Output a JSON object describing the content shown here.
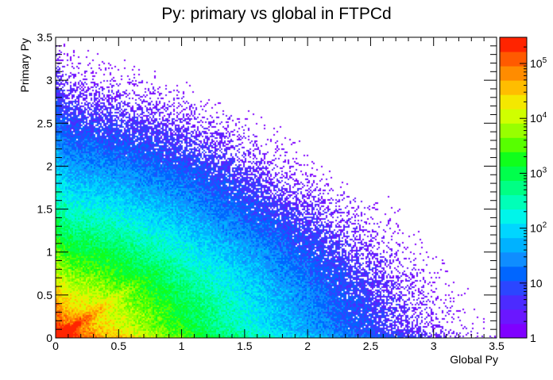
{
  "chart_data": {
    "type": "heatmap",
    "title": "Py: primary vs global in FTPCd",
    "xlabel": "Global Py",
    "ylabel": "Primary Py",
    "xlim": [
      0,
      3.5
    ],
    "ylim": [
      0,
      3.5
    ],
    "xticks": [
      "0",
      "0.5",
      "1",
      "1.5",
      "2",
      "2.5",
      "3",
      "3.5"
    ],
    "yticks": [
      "0",
      "0.5",
      "1",
      "1.5",
      "2",
      "2.5",
      "3",
      "3.5"
    ],
    "xtick_values": [
      0,
      0.5,
      1,
      1.5,
      2,
      2.5,
      3,
      3.5
    ],
    "ytick_values": [
      0,
      0.5,
      1,
      1.5,
      2,
      2.5,
      3,
      3.5
    ],
    "colorbar": {
      "scale": "log",
      "range": [
        1,
        300000
      ],
      "labels": [
        {
          "base": "1",
          "exp": ""
        },
        {
          "base": "10",
          "exp": ""
        },
        {
          "base": "10",
          "exp": "2"
        },
        {
          "base": "10",
          "exp": "3"
        },
        {
          "base": "10",
          "exp": "4"
        },
        {
          "base": "10",
          "exp": "5"
        }
      ],
      "label_values": [
        1,
        10,
        100,
        1000,
        10000,
        100000
      ],
      "palette": [
        "#7f00ff",
        "#6a17ff",
        "#4c2bff",
        "#2b46ff",
        "#0066ff",
        "#0f8dff",
        "#00b2ff",
        "#00d6ff",
        "#00f5ea",
        "#00ffb8",
        "#00ff84",
        "#00ff4c",
        "#10ff1b",
        "#57ff00",
        "#98ff00",
        "#d0ff00",
        "#f4e800",
        "#ffbd00",
        "#ff8c00",
        "#ff5a00",
        "#ff2400"
      ]
    },
    "grid": false
  }
}
